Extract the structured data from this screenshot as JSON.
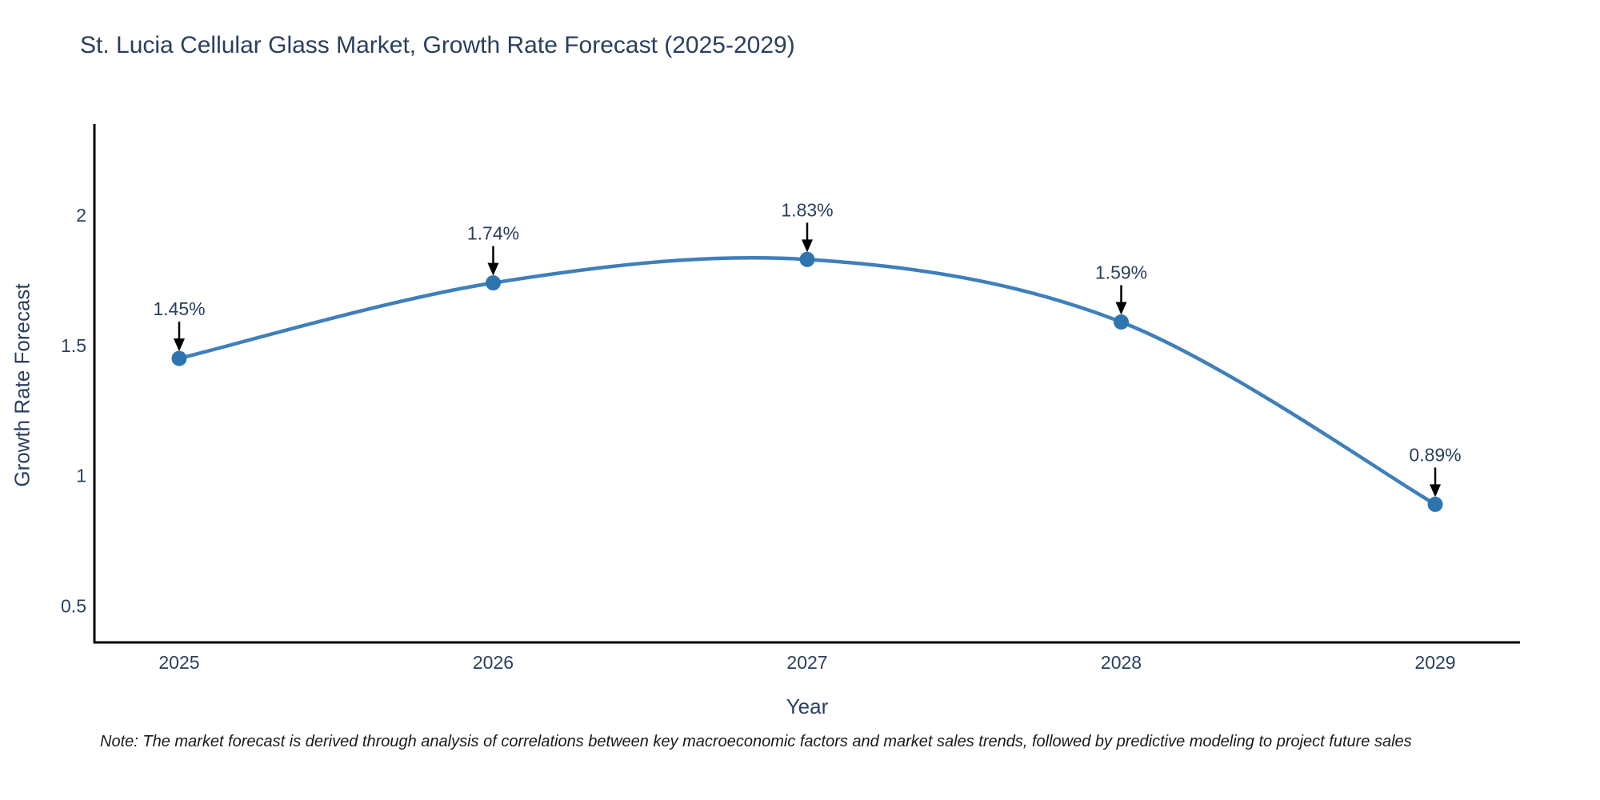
{
  "title": "St. Lucia Cellular Glass Market, Growth Rate Forecast (2025-2029)",
  "note": "Note: The market forecast is derived through analysis of correlations between key macroeconomic factors and market sales trends, followed by predictive modeling to project future sales",
  "chart_data": {
    "type": "line",
    "line_shape": "spline",
    "title": "St. Lucia Cellular Glass Market, Growth Rate Forecast (2025-2029)",
    "xlabel": "Year",
    "ylabel": "Growth Rate Forecast",
    "x": [
      2025,
      2026,
      2027,
      2028,
      2029
    ],
    "categories": [
      "2025",
      "2026",
      "2027",
      "2028",
      "2029"
    ],
    "values": [
      1.45,
      1.74,
      1.83,
      1.59,
      0.89
    ],
    "point_labels": [
      "1.45%",
      "1.74%",
      "1.83%",
      "1.59%",
      "0.89%"
    ],
    "yticks": [
      0.5,
      1,
      1.5,
      2
    ],
    "ytick_labels": [
      "0.5",
      "1",
      "1.5",
      "2"
    ],
    "ylim": [
      0.36,
      2.35
    ],
    "xlim": [
      2024.73,
      2029.27
    ],
    "grid": false,
    "legend": "none",
    "colors": {
      "line": "#3f7fba",
      "marker": "#2e75b0",
      "text": "#2a3f5f",
      "axis": "#000000",
      "arrow": "#000000",
      "note": "#1a1a1a"
    }
  }
}
